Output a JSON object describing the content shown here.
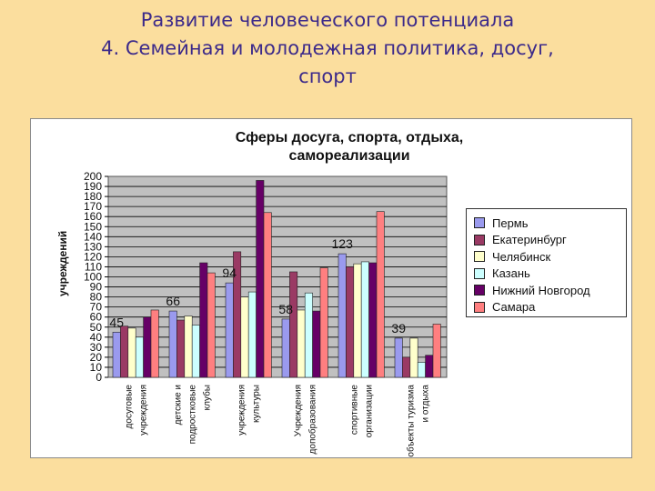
{
  "slide": {
    "title_line1": "Развитие человеческого потенциала",
    "title_line2": "4. Семейная и молодежная политика, досуг,",
    "title_line3": "спорт"
  },
  "colors": {
    "Пермь": "#9a9aee",
    "Екатеринбург": "#9a3a64",
    "Челябинск": "#ffffcc",
    "Казань": "#ccffff",
    "Нижний Новгород": "#660066",
    "Самара": "#ff7f80",
    "plot_bg": "#c0c0c0"
  },
  "chart_data": {
    "type": "bar",
    "title_line1": "Сферы досуга, спорта, отдыха,",
    "title_line2": "самореализации",
    "ylabel": "учреждений",
    "ylim": [
      0,
      200
    ],
    "ytick_step": 10,
    "ytick_labels": [
      "0",
      "10",
      "20",
      "30",
      "40",
      "50",
      "60",
      "70",
      "80",
      "90",
      "100",
      "110",
      "120",
      "130",
      "140",
      "150",
      "160",
      "170",
      "180",
      "190",
      "200"
    ],
    "grid": true,
    "legend_position": "right",
    "categories": [
      {
        "line1": "досуговые",
        "line2": "учреждения"
      },
      {
        "line1": "детские и",
        "line2": "подростковые",
        "line3": "клубы"
      },
      {
        "line1": "учреждения",
        "line2": "культуры"
      },
      {
        "line1": "Учреждения",
        "line2": "допобразования"
      },
      {
        "line1": "спортивные",
        "line2": "организации"
      },
      {
        "line1": "объекты туризма",
        "line2": "и отдыха"
      }
    ],
    "series": [
      {
        "name": "Пермь",
        "values": [
          45,
          66,
          94,
          58,
          123,
          39
        ]
      },
      {
        "name": "Екатеринбург",
        "values": [
          51,
          57,
          125,
          105,
          110,
          20
        ]
      },
      {
        "name": "Челябинск",
        "values": [
          49,
          61,
          80,
          67,
          113,
          39
        ]
      },
      {
        "name": "Казань",
        "values": [
          40,
          52,
          85,
          84,
          115,
          15
        ]
      },
      {
        "name": "Нижний Новгород",
        "values": [
          60,
          114,
          196,
          66,
          114,
          22
        ]
      },
      {
        "name": "Самара",
        "values": [
          67,
          104,
          164,
          109,
          165,
          53
        ]
      }
    ],
    "data_labels": [
      {
        "category_index": 0,
        "series": "Пермь",
        "text": "45"
      },
      {
        "category_index": 1,
        "series": "Пермь",
        "text": "66"
      },
      {
        "category_index": 2,
        "series": "Пермь",
        "text": "94"
      },
      {
        "category_index": 3,
        "series": "Пермь",
        "text": "58"
      },
      {
        "category_index": 4,
        "series": "Пермь",
        "text": "123"
      },
      {
        "category_index": 5,
        "series": "Пермь",
        "text": "39"
      }
    ]
  }
}
